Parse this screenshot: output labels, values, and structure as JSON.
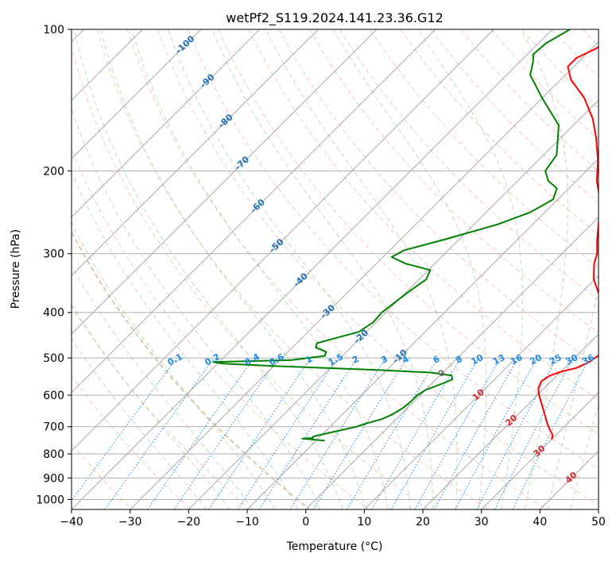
{
  "chart_data": {
    "type": "skew-t",
    "title": "wetPf2_S119.2024.141.23.36.G12",
    "xlabel": "Temperature (°C)",
    "ylabel": "Pressure (hPa)",
    "xlim": [
      -40,
      50
    ],
    "ylim": [
      1050,
      100
    ],
    "y_scale": "log",
    "grid": true,
    "x_ticks": [
      -40,
      -30,
      -20,
      -10,
      0,
      10,
      20,
      30,
      40,
      50
    ],
    "x_tick_labels": [
      "−40",
      "−30",
      "−20",
      "−10",
      "0",
      "10",
      "20",
      "30",
      "40",
      "50"
    ],
    "y_ticks": [
      100,
      200,
      300,
      400,
      500,
      600,
      700,
      800,
      900,
      1000
    ],
    "y_tick_labels": [
      "100",
      "200",
      "300",
      "400",
      "500",
      "600",
      "700",
      "800",
      "900",
      "1000"
    ],
    "colors": {
      "temperature": "#ff0000",
      "dewpoint": "#008000",
      "isotherm": "#999999",
      "dry_adiabat": "#f7a284",
      "moist_adiabat": "#9ccf9c",
      "mixing_ratio": "#1e88e5",
      "label_blue": "#1f6fb4",
      "label_red": "#d62728"
    },
    "series": [
      {
        "role": "temperature",
        "points": [
          [
            745,
            30.0
          ],
          [
            730,
            29.5
          ],
          [
            710,
            28.0
          ],
          [
            690,
            26.6
          ],
          [
            660,
            24.6
          ],
          [
            630,
            22.5
          ],
          [
            600,
            20.3
          ],
          [
            580,
            19.0
          ],
          [
            560,
            18.3
          ],
          [
            545,
            18.8
          ],
          [
            535,
            20.0
          ],
          [
            525,
            22.0
          ],
          [
            510,
            23.2
          ],
          [
            495,
            23.6
          ],
          [
            475,
            24.0
          ],
          [
            455,
            23.2
          ],
          [
            430,
            20.8
          ],
          [
            400,
            17.5
          ],
          [
            370,
            13.8
          ],
          [
            340,
            9.8
          ],
          [
            315,
            7.2
          ],
          [
            300,
            6.0
          ],
          [
            280,
            3.6
          ],
          [
            250,
            0.0
          ],
          [
            230,
            -2.8
          ],
          [
            210,
            -6.5
          ],
          [
            190,
            -9.8
          ],
          [
            170,
            -14.0
          ],
          [
            155,
            -17.8
          ],
          [
            140,
            -22.8
          ],
          [
            128,
            -28.2
          ],
          [
            120,
            -31.0
          ],
          [
            115,
            -31.0
          ],
          [
            110,
            -29.3
          ],
          [
            105,
            -28.5
          ],
          [
            100,
            -29.0
          ]
        ]
      },
      {
        "role": "dewpoint",
        "points": [
          [
            750,
            -8.5
          ],
          [
            745,
            -11.0
          ],
          [
            742,
            -12.7
          ],
          [
            740,
            -11.0
          ],
          [
            735,
            -11.2
          ],
          [
            730,
            -10.5
          ],
          [
            715,
            -8.0
          ],
          [
            700,
            -5.5
          ],
          [
            690,
            -4.5
          ],
          [
            675,
            -2.5
          ],
          [
            660,
            -1.5
          ],
          [
            640,
            -0.8
          ],
          [
            620,
            -0.5
          ],
          [
            600,
            -0.5
          ],
          [
            585,
            0.0
          ],
          [
            575,
            1.0
          ],
          [
            565,
            2.0
          ],
          [
            555,
            2.8
          ],
          [
            545,
            2.0
          ],
          [
            537,
            -2.0
          ],
          [
            530,
            -12.0
          ],
          [
            520,
            -30.0
          ],
          [
            514,
            -39.0
          ],
          [
            510,
            -41.0
          ],
          [
            505,
            -28.0
          ],
          [
            495,
            -23.0
          ],
          [
            485,
            -23.5
          ],
          [
            475,
            -26.0
          ],
          [
            465,
            -26.5
          ],
          [
            455,
            -24.5
          ],
          [
            440,
            -21.3
          ],
          [
            420,
            -20.5
          ],
          [
            400,
            -20.7
          ],
          [
            380,
            -20.2
          ],
          [
            360,
            -19.6
          ],
          [
            340,
            -18.8
          ],
          [
            325,
            -19.7
          ],
          [
            315,
            -25.0
          ],
          [
            305,
            -28.5
          ],
          [
            295,
            -27.5
          ],
          [
            280,
            -22.5
          ],
          [
            260,
            -16.0
          ],
          [
            245,
            -12.5
          ],
          [
            230,
            -10.8
          ],
          [
            218,
            -12.0
          ],
          [
            210,
            -14.8
          ],
          [
            200,
            -17.0
          ],
          [
            185,
            -17.8
          ],
          [
            160,
            -22.5
          ],
          [
            140,
            -30.0
          ],
          [
            125,
            -36.0
          ],
          [
            117,
            -37.8
          ],
          [
            113,
            -39.0
          ],
          [
            107,
            -38.7
          ],
          [
            100,
            -37.0
          ]
        ]
      }
    ],
    "temperature_labels": [
      {
        "text": "-100",
        "p": 108
      },
      {
        "text": "-90",
        "p": 129
      },
      {
        "text": "-80",
        "p": 157
      },
      {
        "text": "-70",
        "p": 193
      },
      {
        "text": "-60",
        "p": 238
      },
      {
        "text": "-50",
        "p": 289
      },
      {
        "text": "-40",
        "p": 342
      },
      {
        "text": "-30",
        "p": 399
      },
      {
        "text": "-20",
        "p": 451
      },
      {
        "text": "-10",
        "p": 497
      },
      {
        "text": "0",
        "p": 540
      },
      {
        "text": "10",
        "p": 600
      },
      {
        "text": "20",
        "p": 680
      },
      {
        "text": "30",
        "p": 790
      },
      {
        "text": "40",
        "p": 900
      }
    ],
    "mixing_ratio_labels": [
      "0.1",
      "0.2",
      "0.4",
      "0.6",
      "1",
      "1.5",
      "2",
      "3",
      "4",
      "6",
      "8",
      "10",
      "13",
      "16",
      "20",
      "25",
      "30",
      "36"
    ]
  }
}
